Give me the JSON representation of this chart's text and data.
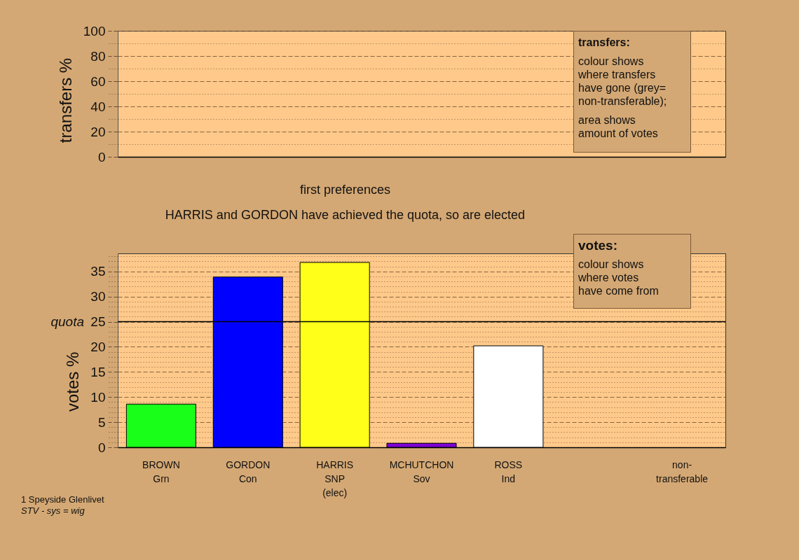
{
  "chart_data": [
    {
      "type": "bar",
      "ylabel": "transfers %",
      "values": [
        null,
        null,
        null,
        null,
        null,
        null,
        null
      ],
      "ylim": [
        0,
        100
      ],
      "yticks": [
        0,
        {
          "value": 10,
          "label": null
        },
        20,
        {
          "value": 30,
          "label": null
        },
        40,
        {
          "value": 50,
          "label": null
        },
        60,
        {
          "value": 70,
          "label": null
        },
        80,
        {
          "value": 90,
          "label": null
        },
        100
      ],
      "grid": "y",
      "tick_labels": "y",
      "annotations": [
        "transfers:",
        "colour shows\nwhere transfers\nhave gone (grey=\nnon-transferable);",
        "area shows\namount of votes"
      ]
    },
    {
      "type": "bar",
      "title": "first preferences",
      "subtitle": "HARRIS and GORDON have achieved the quota, so are elected",
      "ylabel": "votes %",
      "categories": [
        "BROWN\nGrn",
        "GORDON\nCon",
        "HARRIS\nSNP\n(elec)",
        "MCHUTCHON\nSov",
        "ROSS\nInd",
        null,
        "non-\ntransferable"
      ],
      "values": [
        8.6,
        33.9,
        36.8,
        0.8,
        20.2,
        null,
        null
      ],
      "colors": [
        "#1aff1a",
        "#0000ff",
        "#ffff1a",
        "#7f00d4",
        "#ffffff",
        null,
        null
      ],
      "ylim": [
        0,
        38.6
      ],
      "yticks": [
        0,
        {
          "value": 1,
          "label": null
        },
        {
          "value": 2,
          "label": null
        },
        {
          "value": 3,
          "label": null
        },
        {
          "value": 4,
          "label": null
        },
        5,
        {
          "value": 6,
          "label": null
        },
        {
          "value": 7,
          "label": null
        },
        {
          "value": 8,
          "label": null
        },
        {
          "value": 9,
          "label": null
        },
        10,
        {
          "value": 11,
          "label": null
        },
        {
          "value": 12,
          "label": null
        },
        {
          "value": 13,
          "label": null
        },
        {
          "value": 14,
          "label": null
        },
        15,
        {
          "value": 16,
          "label": null
        },
        {
          "value": 17,
          "label": null
        },
        {
          "value": 18,
          "label": null
        },
        {
          "value": 19,
          "label": null
        },
        20,
        {
          "value": 21,
          "label": null
        },
        {
          "value": 22,
          "label": null
        },
        {
          "value": 23,
          "label": null
        },
        {
          "value": 24,
          "label": null
        },
        25,
        {
          "value": 26,
          "label": null
        },
        {
          "value": 27,
          "label": null
        },
        {
          "value": 28,
          "label": null
        },
        {
          "value": 29,
          "label": null
        },
        30,
        {
          "value": 31,
          "label": null
        },
        {
          "value": 32,
          "label": null
        },
        {
          "value": 33,
          "label": null
        },
        {
          "value": 34,
          "label": null
        },
        35,
        {
          "value": 36,
          "label": null
        },
        {
          "value": 37,
          "label": null
        },
        {
          "value": 38,
          "label": null
        }
      ],
      "grid": "y",
      "ref_lines": [
        {
          "axis": "y",
          "value": 25,
          "label": "quota",
          "color": "#000000"
        }
      ],
      "annotations": [
        "votes:",
        "colour shows\nwhere votes\nhave come from",
        "1 Speyside Glenlivet",
        "STV - sys = wig"
      ]
    }
  ]
}
